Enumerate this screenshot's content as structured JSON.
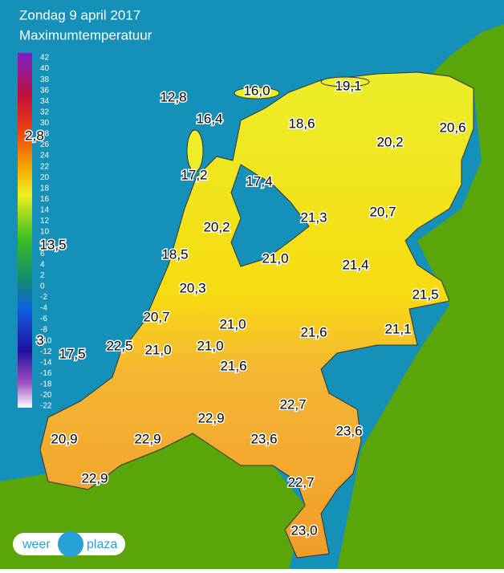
{
  "header": {
    "title": "Zondag 9 april 2017",
    "subtitle": "Maximumtemperatuur"
  },
  "legend": {
    "labels": [
      42,
      40,
      38,
      36,
      34,
      32,
      30,
      28,
      26,
      24,
      22,
      20,
      18,
      16,
      14,
      12,
      10,
      8,
      6,
      4,
      2,
      0,
      -2,
      -4,
      -6,
      -8,
      -10,
      -12,
      -14,
      -16,
      -18,
      -20,
      -22
    ]
  },
  "stations": [
    "12,8",
    "16,0",
    "19,1",
    "16,4",
    "18,6",
    "20,6",
    "20,2",
    "2,8",
    "17,2",
    "17,4",
    "21,3",
    "20,7",
    "20,2",
    "13,5",
    "18,5",
    "21,0",
    "21,4",
    "20,3",
    "21,5",
    "20,7",
    "21,0",
    "21,6",
    "21,1",
    "3",
    "17,5",
    "22,5",
    "21,0",
    "21,0",
    "21,6",
    "22,7",
    "22,9",
    "23,6",
    "20,9",
    "22,9",
    "23,6",
    "22,9",
    "22,7",
    "23,0"
  ],
  "logo": {
    "left": "weer",
    "right": "plaza"
  }
}
